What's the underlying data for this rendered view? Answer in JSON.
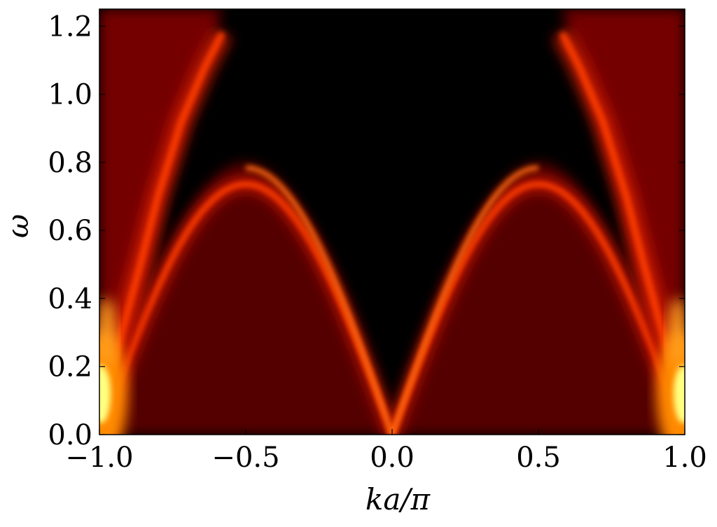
{
  "chart_data": {
    "type": "heatmap",
    "title": "",
    "xlabel": "ka/π",
    "ylabel": "ω",
    "xlim": [
      -1.0,
      1.0
    ],
    "ylim": [
      0.0,
      1.25
    ],
    "x_ticks": [
      -1.0,
      -0.5,
      0.0,
      0.5,
      1.0
    ],
    "x_tick_labels": [
      "−1.0",
      "−0.5",
      "0.0",
      "0.5",
      "1.0"
    ],
    "y_ticks": [
      0.0,
      0.2,
      0.4,
      0.6,
      0.8,
      1.0,
      1.2
    ],
    "y_tick_labels": [
      "0.0",
      "0.2",
      "0.4",
      "0.6",
      "0.8",
      "1.0",
      "1.2"
    ],
    "colormap": "hot",
    "colors": {
      "low": "#000000",
      "mid": "#ff2000",
      "high": "#ffff60",
      "frame": "#000000"
    },
    "features": [
      {
        "name": "lower branch",
        "description": "dome-shaped bright band from the Brillouin zone edges to k=0",
        "peak_omega": 0.8,
        "peak_ka_over_pi": [
          -0.5,
          0.5
        ],
        "omega_at_zero": 0.0
      },
      {
        "name": "upper branch",
        "description": "bright band rising from the zone edges toward the top",
        "omega_range": [
          0.3,
          1.25
        ],
        "endpoint_ka_over_pi": [
          -0.55,
          0.55
        ]
      },
      {
        "name": "hot spots",
        "description": "brightest intensity near the zone boundary at low frequency",
        "ka_over_pi": [
          -1.0,
          1.0
        ],
        "omega": 0.12
      }
    ]
  }
}
